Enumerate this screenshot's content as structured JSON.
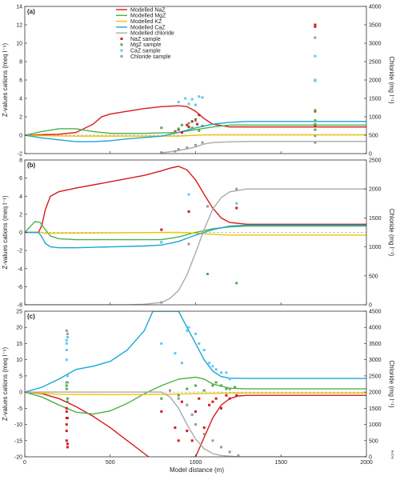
{
  "figure": {
    "x_axis_label": "Model distance (m)",
    "x_ticks": [
      "0",
      "500",
      "1000",
      "1500",
      "2000"
    ],
    "left_axis_label": "Z-values cations (meq l⁻¹)",
    "right_axis_label": "Chloride (mg l⁻¹)",
    "corner_note": "RCPB",
    "legend": [
      {
        "label": "Modelled NaZ",
        "kind": "line",
        "color": "#d7191c"
      },
      {
        "label": "Modelled MgZ",
        "kind": "line",
        "color": "#4daf4a"
      },
      {
        "label": "Modelled KZ",
        "kind": "line",
        "color": "#f2c300"
      },
      {
        "label": "Modelled CaZ",
        "kind": "line",
        "color": "#1aa6d8"
      },
      {
        "label": "Modelled chloride",
        "kind": "line",
        "color": "#aaaaaa"
      },
      {
        "label": "NaZ sample",
        "kind": "point",
        "color": "#d7191c"
      },
      {
        "label": "MgZ sample",
        "kind": "point",
        "color": "#4daf4a"
      },
      {
        "label": "CaZ sample",
        "kind": "point",
        "color": "#5ec8f2"
      },
      {
        "label": "Chloride sample",
        "kind": "point",
        "color": "#999999"
      }
    ]
  },
  "chart_data": [
    {
      "type": "line",
      "panel": "(a)",
      "xlim": [
        0,
        2000
      ],
      "ylim": [
        -2,
        14
      ],
      "y_ticks": [
        "-2",
        "0",
        "2",
        "4",
        "6",
        "8",
        "10",
        "12",
        "14"
      ],
      "y2lim": [
        0,
        4000
      ],
      "y2_ticks": [
        "0",
        "500",
        "1000",
        "1500",
        "2000",
        "2500",
        "3000",
        "3500",
        "4000"
      ],
      "series": [
        {
          "name": "Modelled NaZ",
          "axis": "left",
          "x": [
            0,
            200,
            300,
            400,
            450,
            500,
            600,
            700,
            800,
            900,
            950,
            1000,
            1050,
            1100,
            1200,
            1300,
            2000
          ],
          "y": [
            0,
            0.1,
            0.3,
            1.2,
            2.0,
            2.3,
            2.6,
            2.9,
            3.1,
            3.2,
            3.1,
            2.6,
            1.8,
            1.2,
            0.9,
            0.9,
            0.9
          ]
        },
        {
          "name": "Modelled MgZ",
          "axis": "left",
          "x": [
            0,
            100,
            200,
            300,
            400,
            500,
            700,
            900,
            1000,
            1100,
            1200,
            2000
          ],
          "y": [
            0,
            0.4,
            0.7,
            0.7,
            0.4,
            0.2,
            0.2,
            0.3,
            0.6,
            0.9,
            1.1,
            1.1
          ]
        },
        {
          "name": "Modelled KZ",
          "axis": "left",
          "x": [
            0,
            100,
            200,
            300,
            400,
            600,
            900,
            1000,
            1100,
            1200,
            2000
          ],
          "y": [
            0,
            -0.05,
            -0.08,
            -0.1,
            -0.1,
            -0.1,
            -0.1,
            0,
            0.05,
            0.05,
            0.05
          ]
        },
        {
          "name": "Modelled CaZ",
          "axis": "left",
          "x": [
            0,
            100,
            200,
            300,
            400,
            500,
            600,
            800,
            900,
            1000,
            1100,
            1200,
            1300,
            2000
          ],
          "y": [
            0,
            -0.3,
            -0.5,
            -0.7,
            -0.7,
            -0.6,
            -0.4,
            -0.1,
            0.3,
            0.8,
            1.2,
            1.4,
            1.5,
            1.5
          ]
        },
        {
          "name": "Modelled chloride",
          "axis": "right",
          "x": [
            800,
            900,
            1000,
            1050,
            1100,
            1200,
            1300,
            2000
          ],
          "y": [
            20,
            80,
            180,
            260,
            300,
            320,
            330,
            330
          ]
        }
      ],
      "samples": [
        {
          "name": "NaZ sample",
          "x": [
            880,
            900,
            920,
            950,
            960,
            980,
            1000,
            1010,
            1020,
            1040,
            1700,
            1700,
            1700,
            1700
          ],
          "y": [
            0.4,
            0.6,
            0.3,
            1.1,
            0.9,
            1.5,
            1.7,
            1.2,
            2.2,
            1.0,
            12.0,
            11.8,
            2.6,
            1.0
          ]
        },
        {
          "name": "MgZ sample",
          "x": [
            800,
            880,
            900,
            920,
            960,
            980,
            1000,
            1020,
            1040,
            1700,
            1700,
            1700,
            1700
          ],
          "y": [
            0.8,
            0.3,
            0.7,
            1.1,
            1.3,
            0.8,
            1.6,
            0.5,
            1.0,
            1.2,
            1.6,
            0.6,
            2.7
          ]
        },
        {
          "name": "CaZ sample",
          "x": [
            900,
            940,
            960,
            980,
            1000,
            1020,
            1040,
            1700,
            1700,
            1700
          ],
          "y": [
            3.6,
            4.0,
            3.4,
            3.9,
            3.3,
            4.2,
            4.1,
            8.6,
            6.0,
            5.9
          ]
        },
        {
          "name": "Chloride sample",
          "x": [
            800,
            880,
            900,
            950,
            1000,
            1040,
            1700,
            1700,
            1700
          ],
          "y": [
            30,
            60,
            120,
            160,
            230,
            300,
            3150,
            480,
            300
          ]
        }
      ]
    },
    {
      "type": "line",
      "panel": "(b)",
      "xlim": [
        0,
        2000
      ],
      "ylim": [
        -8,
        8
      ],
      "y_ticks": [
        "-8",
        "-6",
        "-4",
        "-2",
        "0",
        "2",
        "4",
        "6",
        "8"
      ],
      "y2lim": [
        0,
        2500
      ],
      "y2_ticks": [
        "0",
        "500",
        "1000",
        "1500",
        "2000",
        "2500"
      ],
      "series": [
        {
          "name": "Modelled NaZ",
          "axis": "left",
          "x": [
            0,
            80,
            100,
            120,
            150,
            200,
            300,
            500,
            700,
            800,
            850,
            900,
            950,
            1000,
            1050,
            1100,
            1150,
            1200,
            1300,
            2000
          ],
          "y": [
            0,
            0,
            0.8,
            2.5,
            4.0,
            4.5,
            4.9,
            5.6,
            6.3,
            6.8,
            7.1,
            7.3,
            6.9,
            5.8,
            4.2,
            2.7,
            1.6,
            1.1,
            0.9,
            0.9
          ]
        },
        {
          "name": "Modelled MgZ",
          "axis": "left",
          "x": [
            0,
            30,
            60,
            90,
            120,
            150,
            200,
            300,
            500,
            700,
            800,
            900,
            1000,
            1100,
            1200,
            1300,
            2000
          ],
          "y": [
            0,
            0.6,
            1.2,
            1.1,
            0.3,
            -0.4,
            -0.7,
            -0.8,
            -0.8,
            -0.8,
            -0.8,
            -0.5,
            0,
            0.4,
            0.6,
            0.7,
            0.7
          ]
        },
        {
          "name": "Modelled KZ",
          "axis": "left",
          "x": [
            0,
            100,
            110,
            500,
            900,
            1000,
            1100,
            1200,
            2000
          ],
          "y": [
            0,
            0,
            -0.1,
            -0.05,
            0,
            -0.1,
            -0.2,
            -0.3,
            -0.3
          ]
        },
        {
          "name": "Modelled CaZ",
          "axis": "left",
          "x": [
            0,
            80,
            100,
            120,
            150,
            200,
            300,
            500,
            700,
            800,
            900,
            1000,
            1100,
            1200,
            1300,
            2000
          ],
          "y": [
            0,
            0,
            -0.5,
            -1.2,
            -1.6,
            -1.7,
            -1.7,
            -1.6,
            -1.5,
            -1.4,
            -1.0,
            -0.3,
            0.3,
            0.7,
            0.8,
            0.8
          ]
        },
        {
          "name": "Modelled chloride",
          "axis": "right",
          "x": [
            0,
            600,
            700,
            800,
            850,
            900,
            950,
            1000,
            1050,
            1100,
            1150,
            1200,
            1300,
            2000
          ],
          "y": [
            0,
            0,
            10,
            40,
            110,
            250,
            520,
            900,
            1300,
            1650,
            1850,
            1950,
            2000,
            2000
          ]
        }
      ],
      "samples": [
        {
          "name": "NaZ sample",
          "x": [
            800,
            960,
            1240
          ],
          "y": [
            0.3,
            2.3,
            2.7
          ]
        },
        {
          "name": "MgZ sample",
          "x": [
            800,
            1070,
            1240
          ],
          "y": [
            -1.1,
            -4.6,
            -5.6
          ]
        },
        {
          "name": "CaZ sample",
          "x": [
            800,
            960,
            1240
          ],
          "y": [
            -1.1,
            4.2,
            3.2
          ]
        },
        {
          "name": "Chloride sample",
          "x": [
            800,
            960,
            1070,
            1240
          ],
          "y": [
            40,
            1050,
            1700,
            2000
          ]
        }
      ]
    },
    {
      "type": "line",
      "panel": "(c)",
      "xlim": [
        0,
        2000
      ],
      "ylim": [
        -20,
        25
      ],
      "y_ticks": [
        "-20",
        "-15",
        "-10",
        "-5",
        "0",
        "5",
        "10",
        "15",
        "20",
        "25"
      ],
      "y2lim": [
        0,
        4500
      ],
      "y2_ticks": [
        "0",
        "500",
        "1000",
        "1500",
        "2000",
        "2500",
        "3000",
        "3500",
        "4000",
        "4500"
      ],
      "series": [
        {
          "name": "Modelled NaZ",
          "axis": "left",
          "x": [
            0,
            100,
            200,
            300,
            400,
            500,
            600,
            700,
            750,
            1000,
            1050,
            1100,
            1150,
            1200,
            1250,
            1300,
            2000
          ],
          "y": [
            0,
            -0.5,
            -2,
            -4.5,
            -7.5,
            -11,
            -15,
            -19,
            -21,
            -20,
            -14,
            -8,
            -4,
            -2,
            -1.2,
            -1,
            -1
          ]
        },
        {
          "name": "Modelled MgZ",
          "axis": "left",
          "x": [
            0,
            100,
            200,
            300,
            400,
            500,
            600,
            700,
            800,
            900,
            1000,
            1050,
            1100,
            1200,
            1300,
            2000
          ],
          "y": [
            0,
            -1.5,
            -4,
            -6.2,
            -6.8,
            -5.8,
            -3.5,
            -0.5,
            2,
            4,
            4.6,
            4,
            2.5,
            1.2,
            1,
            1
          ]
        },
        {
          "name": "Modelled KZ",
          "axis": "left",
          "x": [
            0,
            200,
            500,
            800,
            1000,
            1100,
            1200,
            2000
          ],
          "y": [
            0,
            -0.7,
            -0.8,
            -0.7,
            -0.5,
            -0.4,
            -0.3,
            -0.3
          ]
        },
        {
          "name": "Modelled CaZ",
          "axis": "left",
          "x": [
            0,
            100,
            200,
            300,
            400,
            500,
            600,
            700,
            750,
            900,
            950,
            1000,
            1050,
            1100,
            1150,
            1200,
            1300,
            2000
          ],
          "y": [
            0,
            1.5,
            4,
            7,
            8,
            9.5,
            13,
            19,
            25,
            25,
            20,
            15,
            10,
            6.5,
            4.8,
            4.3,
            4.2,
            4.2
          ]
        },
        {
          "name": "Modelled chloride",
          "axis": "right",
          "x": [
            0,
            800,
            850,
            900,
            950,
            1000,
            1050,
            1100,
            1150,
            1200,
            1250,
            2000
          ],
          "y": [
            2000,
            2000,
            1850,
            1500,
            1000,
            550,
            250,
            100,
            40,
            20,
            0,
            0
          ]
        }
      ],
      "samples": [
        {
          "name": "NaZ sample",
          "x": [
            245,
            245,
            245,
            245,
            245,
            245,
            250,
            250,
            250,
            800,
            880,
            900,
            920,
            950,
            980,
            1000,
            1020,
            1050,
            1080,
            1100,
            1120,
            1150,
            1180,
            1200,
            1240
          ],
          "y": [
            -5,
            -6,
            -8,
            -10,
            -12,
            -15,
            -16,
            -17,
            -8,
            -6,
            -11,
            -15,
            -3,
            -12,
            -15,
            -6,
            -2,
            -11,
            -4,
            -3,
            -2,
            -5,
            -1,
            -2,
            -1
          ]
        },
        {
          "name": "MgZ sample",
          "x": [
            245,
            245,
            245,
            250,
            250,
            800,
            900,
            950,
            1000,
            1050,
            1100,
            1120,
            1150,
            1180,
            1200,
            1230
          ],
          "y": [
            3,
            2,
            1,
            -2,
            -3,
            -2,
            -1,
            1,
            2,
            0.5,
            2,
            3,
            2,
            1,
            1,
            1.5
          ]
        },
        {
          "name": "CaZ sample",
          "x": [
            245,
            245,
            245,
            245,
            250,
            250,
            800,
            880,
            920,
            950,
            960,
            1000,
            1020,
            1050,
            1080,
            1100,
            1120,
            1150,
            1180,
            1200
          ],
          "y": [
            16,
            15,
            13,
            10,
            17,
            5,
            15,
            12,
            9,
            19,
            20,
            18,
            15,
            13,
            9,
            8,
            7,
            6,
            6,
            4
          ]
        },
        {
          "name": "Chloride sample",
          "x": [
            245,
            250,
            250,
            850,
            900,
            950,
            980,
            1000,
            1050,
            1100,
            1150,
            1200,
            1250
          ],
          "y": [
            3900,
            3800,
            2300,
            2050,
            1800,
            1600,
            1300,
            1000,
            700,
            500,
            300,
            150,
            40
          ]
        }
      ]
    }
  ]
}
